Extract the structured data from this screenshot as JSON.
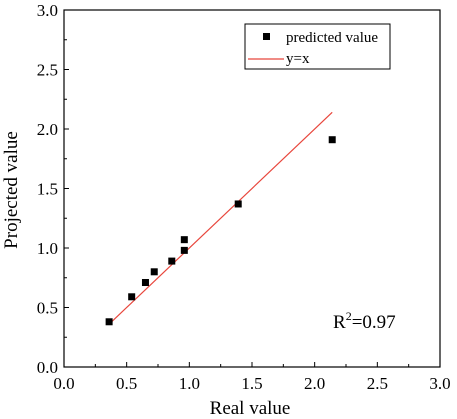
{
  "chart_data": {
    "type": "scatter",
    "xlabel": "Real value",
    "ylabel": "Projected value",
    "xlim": [
      0.0,
      3.0
    ],
    "ylim": [
      0.0,
      3.0
    ],
    "x_ticks": [
      "0.0",
      "0.5",
      "1.0",
      "1.5",
      "2.0",
      "2.5",
      "3.0"
    ],
    "y_ticks": [
      "0.0",
      "0.5",
      "1.0",
      "1.5",
      "2.0",
      "2.5",
      "3.0"
    ],
    "grid": false,
    "legend_position": "top-right",
    "series": [
      {
        "name": "predicted value",
        "marker": "square",
        "color": "#000000",
        "points": [
          {
            "x": 0.36,
            "y": 0.38
          },
          {
            "x": 0.54,
            "y": 0.59
          },
          {
            "x": 0.65,
            "y": 0.71
          },
          {
            "x": 0.72,
            "y": 0.8
          },
          {
            "x": 0.86,
            "y": 0.89
          },
          {
            "x": 0.96,
            "y": 0.98
          },
          {
            "x": 0.96,
            "y": 1.07
          },
          {
            "x": 1.39,
            "y": 1.37
          },
          {
            "x": 2.14,
            "y": 1.91
          }
        ]
      },
      {
        "name": "y=x",
        "line": "solid",
        "color": "#e8463c",
        "points": [
          {
            "x": 0.36,
            "y": 0.36
          },
          {
            "x": 2.14,
            "y": 2.14
          }
        ]
      }
    ],
    "annotation": {
      "prefix": "R",
      "superscript": "2",
      "suffix": "=0.97"
    }
  }
}
